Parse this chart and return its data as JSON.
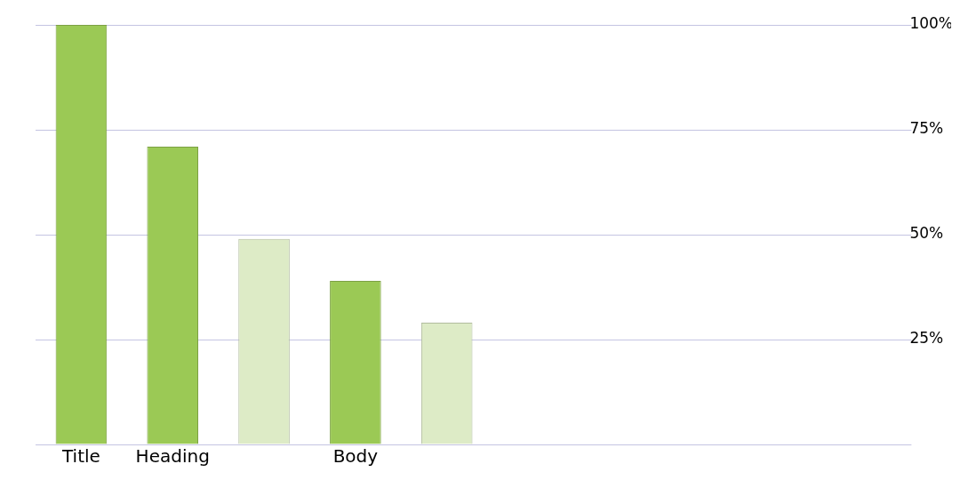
{
  "chart_data": {
    "type": "bar",
    "categories": [
      "Title",
      "Heading",
      null,
      "Body",
      null,
      null,
      null,
      null,
      null
    ],
    "values": [
      100,
      71,
      49,
      39,
      29,
      null,
      null,
      null,
      null
    ],
    "colors": [
      "#9bc955",
      "#9bc955",
      "#ddebc6",
      "#9bc955",
      "#ddebc6",
      "#9bc955",
      "#9bc955",
      "#9bc955",
      "#9bc955"
    ],
    "ylim": [
      0,
      100
    ],
    "yticks": [
      {
        "value": 0,
        "label": null
      },
      {
        "value": 25,
        "label": "25%"
      },
      {
        "value": 50,
        "label": "50%"
      },
      {
        "value": 75,
        "label": "75%"
      },
      {
        "value": 100,
        "label": "100%"
      }
    ],
    "grid": "y",
    "legend": false
  }
}
